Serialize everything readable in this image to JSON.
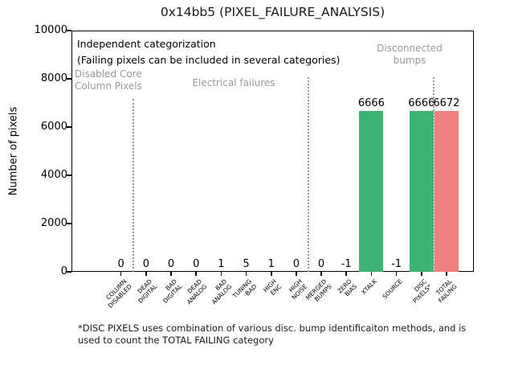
{
  "chart_data": {
    "type": "bar",
    "title": "0x14bb5 (PIXEL_FAILURE_ANALYSIS)",
    "xlabel": "",
    "ylabel": "Number of pixels",
    "ylim": [
      0,
      10000
    ],
    "yticks": [
      "0",
      "2000",
      "4000",
      "6000",
      "8000",
      "10000"
    ],
    "grid": false,
    "legend": "none",
    "categories": [
      "COLUMN\nDISABLED",
      "DEAD\nDIGITAL",
      "BAD\nDIGITAL",
      "DEAD\nANALOG",
      "BAD\nANALOG",
      "TUNING\nBAD",
      "HIGH\nENC",
      "HIGH\nNOISE",
      "MERGED\nBUMPS",
      "ZERO\nBIAS",
      "XTALK",
      "SOURCE",
      "DISC\nPIXELS*",
      "TOTAL\nFAILING"
    ],
    "values": [
      0,
      0,
      0,
      0,
      1,
      5,
      1,
      0,
      0,
      -1,
      6666,
      -1,
      6666,
      6672
    ],
    "value_labels": [
      "0",
      "0",
      "0",
      "0",
      "1",
      "5",
      "1",
      "0",
      "0",
      "-1",
      "6666",
      "-1",
      "6666",
      "6672"
    ],
    "bar_colors": [
      "#3cb371",
      "#3cb371",
      "#3cb371",
      "#3cb371",
      "#3cb371",
      "#3cb371",
      "#3cb371",
      "#3cb371",
      "#3cb371",
      "#3cb371",
      "#3cb371",
      "#3cb371",
      "#3cb371",
      "#f08080"
    ],
    "colors": {
      "bar_green": "#3cb371",
      "bar_red": "#f08080",
      "annotation_gray": "#999999",
      "separator_gray": "#999999",
      "text": "#000000"
    },
    "annotations": {
      "independent": "Independent categorization",
      "failing_note": "(Failing pixels can be included in several categories)",
      "disabled_core": "Disabled Core\nColumn Pixels",
      "electrical": "Electrical failures",
      "disconnected": "Disconnected\nbumps"
    },
    "separators_after_category": [
      0,
      7,
      12
    ],
    "footnote": "*DISC PIXELS uses combination of various disc. bump identificaiton methods, and is\nused to count the TOTAL FAILING category"
  }
}
